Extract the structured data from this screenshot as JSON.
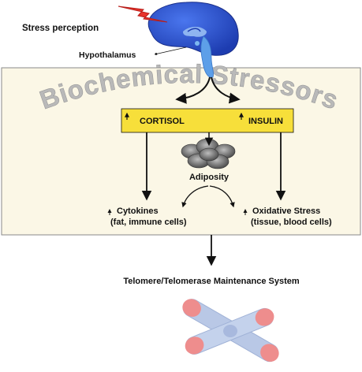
{
  "labels": {
    "stress_perception": "Stress perception",
    "hypothalamus": "Hypothalamus",
    "banner": "Biochemical Stressors",
    "cortisol": "CORTISOL",
    "insulin": "INSULIN",
    "adiposity": "Adiposity",
    "cytokines": "Cytokines",
    "cytokines_sub": "(fat, immune cells)",
    "oxidative": "Oxidative Stress",
    "oxidative_sub": "(tissue, blood cells)",
    "telomere_system": "Telomere/Telomerase Maintenance System"
  },
  "colors": {
    "panel_fill": "#fbf7e6",
    "panel_border": "#8a8a8a",
    "hormone_box": "#f7df3a",
    "brain": "#2d55d6",
    "brainstem": "#5d9fe8",
    "lightning": "#e8322a",
    "banner_text": "#b9b9b9",
    "chromosome": "#b9c8e6",
    "telomere_cap": "#ee8d8d"
  },
  "icons": {
    "brain": "brain-icon",
    "lightning": "lightning-bolt-icon",
    "fat_tissue": "fat-tissue-icon",
    "chromosome": "chromosome-icon"
  }
}
